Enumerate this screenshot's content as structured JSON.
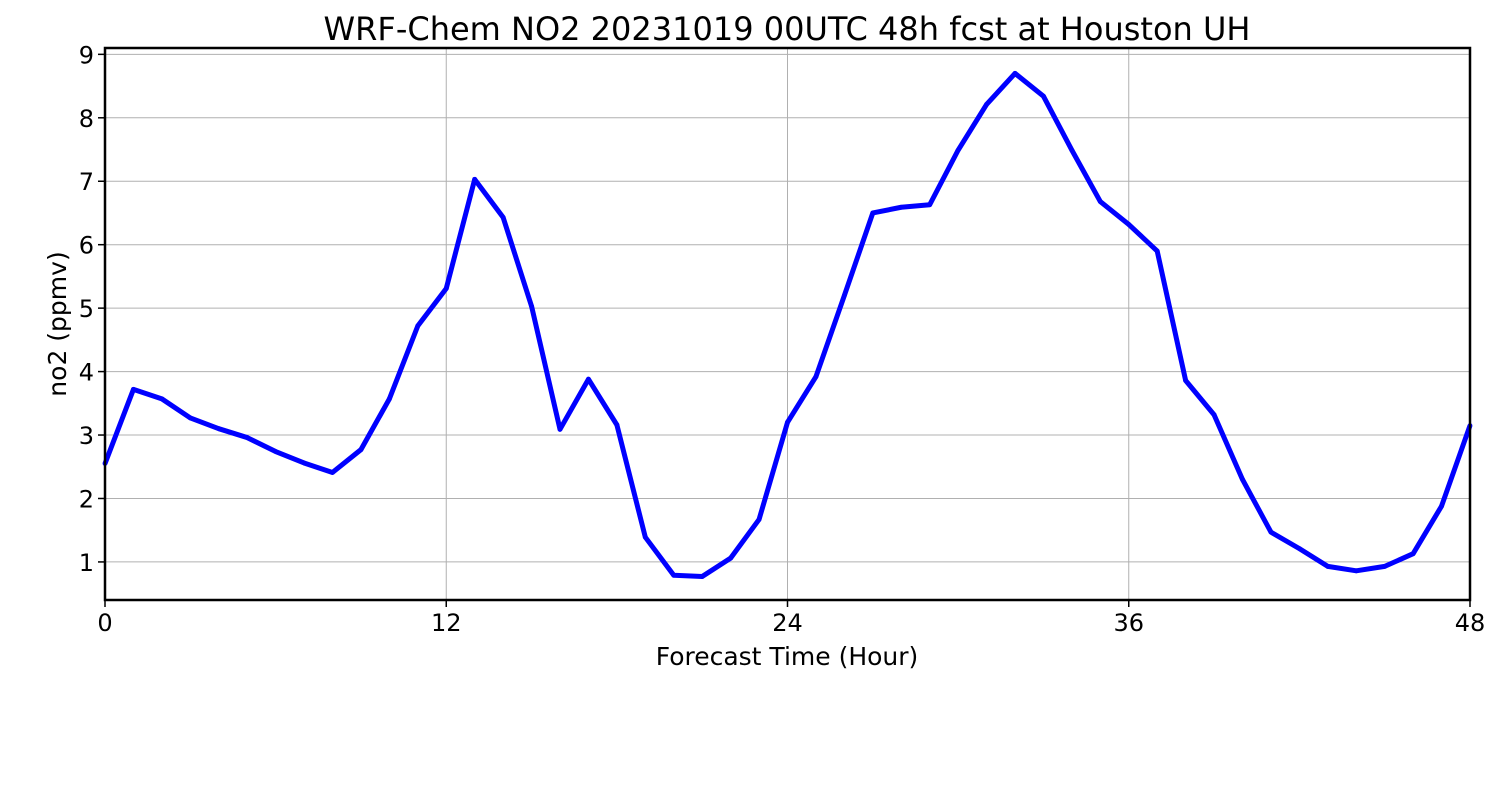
{
  "chart_data": {
    "type": "line",
    "title": "WRF-Chem NO2  20231019 00UTC 48h fcst at Houston UH",
    "xlabel": "Forecast Time (Hour)",
    "ylabel": "no2  (ppmv)",
    "xlim": [
      0,
      48
    ],
    "ylim": [
      0.4,
      9.1
    ],
    "xticks": [
      0,
      12,
      24,
      36,
      48
    ],
    "yticks": [
      1,
      2,
      3,
      4,
      5,
      6,
      7,
      8,
      9
    ],
    "grid": true,
    "colors": {
      "line": "#0000ff",
      "grid": "#b0b0b0",
      "axes": "#000000"
    },
    "series": [
      {
        "x": [
          0,
          1,
          2,
          3,
          4,
          5,
          6,
          7,
          8,
          9,
          10,
          11,
          12,
          13,
          14,
          15,
          16,
          17,
          18,
          19,
          20,
          21,
          22,
          23,
          24,
          25,
          26,
          27,
          28,
          29,
          30,
          31,
          32,
          33,
          34,
          35,
          36,
          37,
          38,
          39,
          40,
          41,
          42,
          43,
          44,
          45,
          46,
          47,
          48
        ],
        "values": [
          2.55,
          3.72,
          3.57,
          3.27,
          3.1,
          2.96,
          2.74,
          2.56,
          2.41,
          2.77,
          3.57,
          4.72,
          5.31,
          7.03,
          6.43,
          5.03,
          3.09,
          3.88,
          3.16,
          1.39,
          0.79,
          0.77,
          1.06,
          1.67,
          3.2,
          3.92,
          5.2,
          6.5,
          6.59,
          6.63,
          7.49,
          8.21,
          8.7,
          8.34,
          7.49,
          6.68,
          6.32,
          5.9,
          3.86,
          3.32,
          2.3,
          1.47,
          1.21,
          0.93,
          0.86,
          0.93,
          1.13,
          1.88,
          3.15
        ]
      }
    ]
  }
}
